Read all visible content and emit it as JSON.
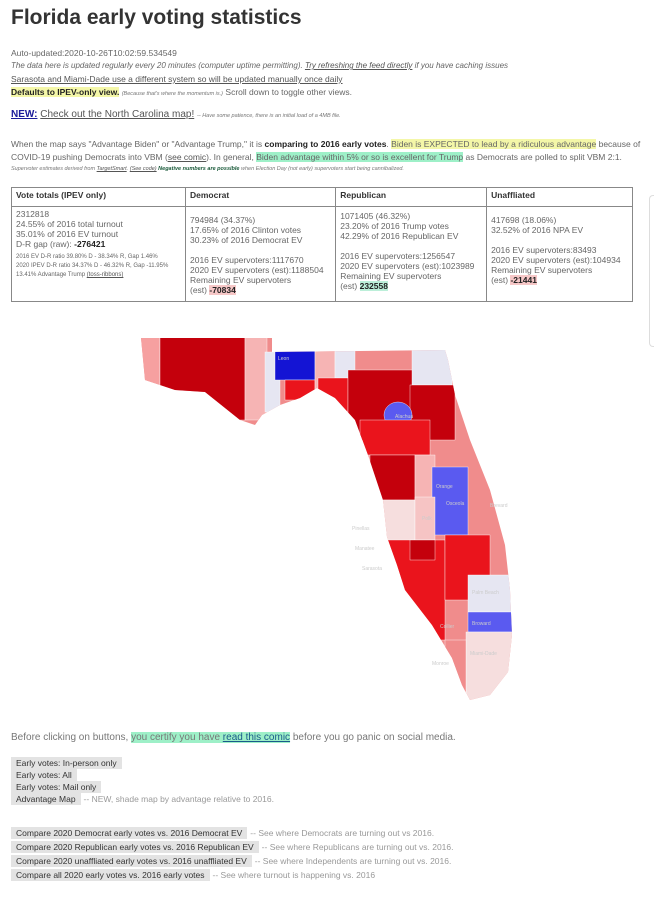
{
  "title": "Florida early voting statistics",
  "auto_updated": "Auto-updated:2020-10-26T10:02:59.534549",
  "update_note": "The data here is updated regularly every 20 minutes (computer uptime permitting).",
  "refresh_link": "Try refreshing the feed directly",
  "caching_note": "if you have caching issues",
  "sarasota_link": "Sarasota and Miami-Dade use a different system so will be updated manually once daily",
  "defaults": "Defaults to IPEV-only view.",
  "defaults_small": "(Because that's where the momentum is.)",
  "scroll_note": "Scroll down to toggle other views.",
  "new_label": "NEW:",
  "nc_link": "Check out the North Carolina map!",
  "nc_note": "-- Have some patience, there is an initial load of a 4MB file.",
  "para1_a": "When the map says \"Advantage Biden\" or \"Advantage Trump,\" it is",
  "para1_b": "comparing to 2016 early votes",
  "para1_c": "Biden is EXPECTED to lead by a ridiculous advantage",
  "para1_d": "because of",
  "para2_a": "COVID-19 pushing Democrats into VBM (",
  "para2_link": "see comic",
  "para2_b": "). In general,",
  "para2_c": "Biden advantage within 5% or so is excellent for Trump",
  "para2_d": "as Democrats are polled to split VBM 2:1.",
  "fine_a": "Supervoter estimates derived from",
  "fine_link1": "TargetSmart",
  "fine_link2": "(See code)",
  "fine_b": "Negative numbers are possible",
  "fine_c": "when Election Day (not early) supervoters start being cannibalized.",
  "table": {
    "headers": [
      "Vote totals (IPEV only)",
      "Democrat",
      "Republican",
      "Unaffliated"
    ],
    "totals": {
      "l1": "2312818",
      "l2": "24.55% of 2016 total turnout",
      "l3": "35.01% of 2016 EV turnout",
      "gap_label": "D-R gap (raw):",
      "gap": "-276421",
      "r1": "2016 EV D-R ratio 39.80% D - 38.34% R, Gap 1.46%",
      "r2": "2020 IPEV D-R ratio 34.37% D - 46.32% R, Gap -11.95%",
      "adv": "13.41% Advantage Trump",
      "adv_link": "(toss-ribbons)"
    },
    "dem": {
      "l1": "794984 (34.37%)",
      "l2": "17.65% of 2016 Clinton votes",
      "l3": "30.23% of 2016 Democrat EV",
      "s1": "2016 EV supervoters:1117670",
      "s2": "2020 EV supervoters (est):1188504",
      "s3": "Remaining EV supervoters",
      "est": "(est)",
      "rem": "-70834"
    },
    "rep": {
      "l1": "1071405 (46.32%)",
      "l2": "23.20% of 2016 Trump votes",
      "l3": "42.29% of 2016 Republican EV",
      "s1": "2016 EV supervoters:1256547",
      "s2": "2020 EV supervoters (est):1023989",
      "s3": "Remaining EV supervoters",
      "est": "(est)",
      "rem": "232558"
    },
    "una": {
      "l1": "417698 (18.06%)",
      "l2": "32.52% of 2016 NPA EV",
      "s1": "2016 EV supervoters:83493",
      "s2": "2020 EV supervoters (est):104934",
      "s3": "Remaining EV supervoters",
      "est": "(est)",
      "rem": "-21441"
    }
  },
  "map_labels": {
    "alachua": "Alachua",
    "orange": "Orange",
    "osceola": "Osceola",
    "brevard": "Brevard",
    "pinellas": "Pinellas",
    "manatee": "Manatee",
    "sarasota": "Sarasota",
    "polk": "Polk",
    "palm": "Palm Beach",
    "broward": "Broward",
    "dade": "Miami-Dade",
    "collier": "Collier",
    "leon": "Leon",
    "monroe": "Monroe"
  },
  "colors": {
    "dark_red": "#c4000c",
    "red": "#ea141c",
    "light_red": "#f08c8c",
    "pink": "#f6c4c4",
    "pale": "#e6e6f2",
    "blue": "#5a5af0",
    "dark_blue": "#1414d4"
  },
  "certify_a": "Before clicking on buttons,",
  "certify_b": "you certify you have",
  "certify_link": "read this comic",
  "certify_c": "before you go panic on social media.",
  "buttons1": [
    "Early votes: In-person only",
    "Early votes: All",
    "Early votes: Mail only",
    "Advantage Map"
  ],
  "adv_note": "-- NEW, shade map by advantage relative to 2016.",
  "buttons2": [
    {
      "label": "Compare 2020 Democrat early votes vs. 2016 Democrat EV",
      "note": "-- See where Democrats are turning out vs 2016."
    },
    {
      "label": "Compare 2020 Republican early votes vs. 2016 Republican EV",
      "note": "-- See where Republicans are turning out vs. 2016."
    },
    {
      "label": "Compare 2020 unaffliated early votes vs. 2016 unaffliated EV",
      "note": "-- See where Independents are turning out vs. 2016."
    },
    {
      "label": "Compare all 2020 early votes vs. 2016 early votes",
      "note": "-- See where turnout is happening vs. 2016"
    }
  ]
}
